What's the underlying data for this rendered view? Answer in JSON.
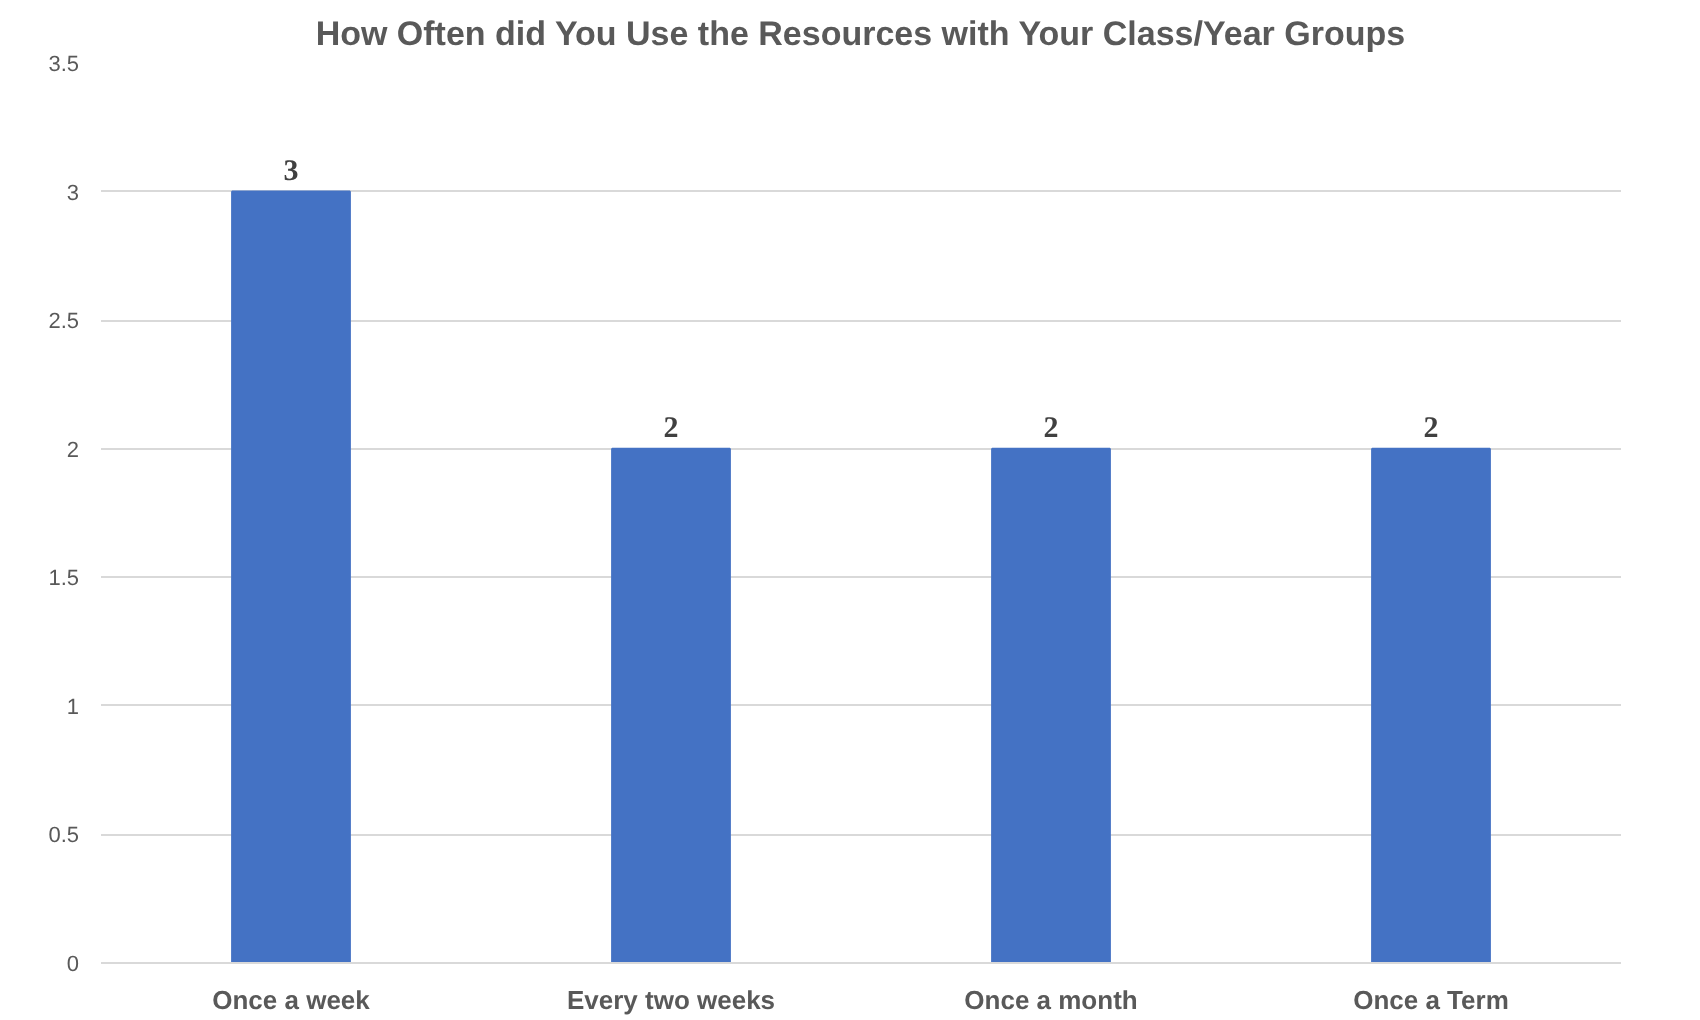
{
  "chart_data": {
    "type": "bar",
    "title": "How Often did You Use the Resources with Your Class/Year Groups",
    "categories": [
      "Once a week",
      "Every two weeks",
      "Once a month",
      "Once a Term"
    ],
    "values": [
      3,
      2,
      2,
      2
    ],
    "color": "#4472c4",
    "ylim": [
      0,
      3.5
    ],
    "yticks": [
      0,
      0.5,
      1,
      1.5,
      2,
      2.5,
      3,
      3.5
    ],
    "grid": "y",
    "data_labels": true
  }
}
